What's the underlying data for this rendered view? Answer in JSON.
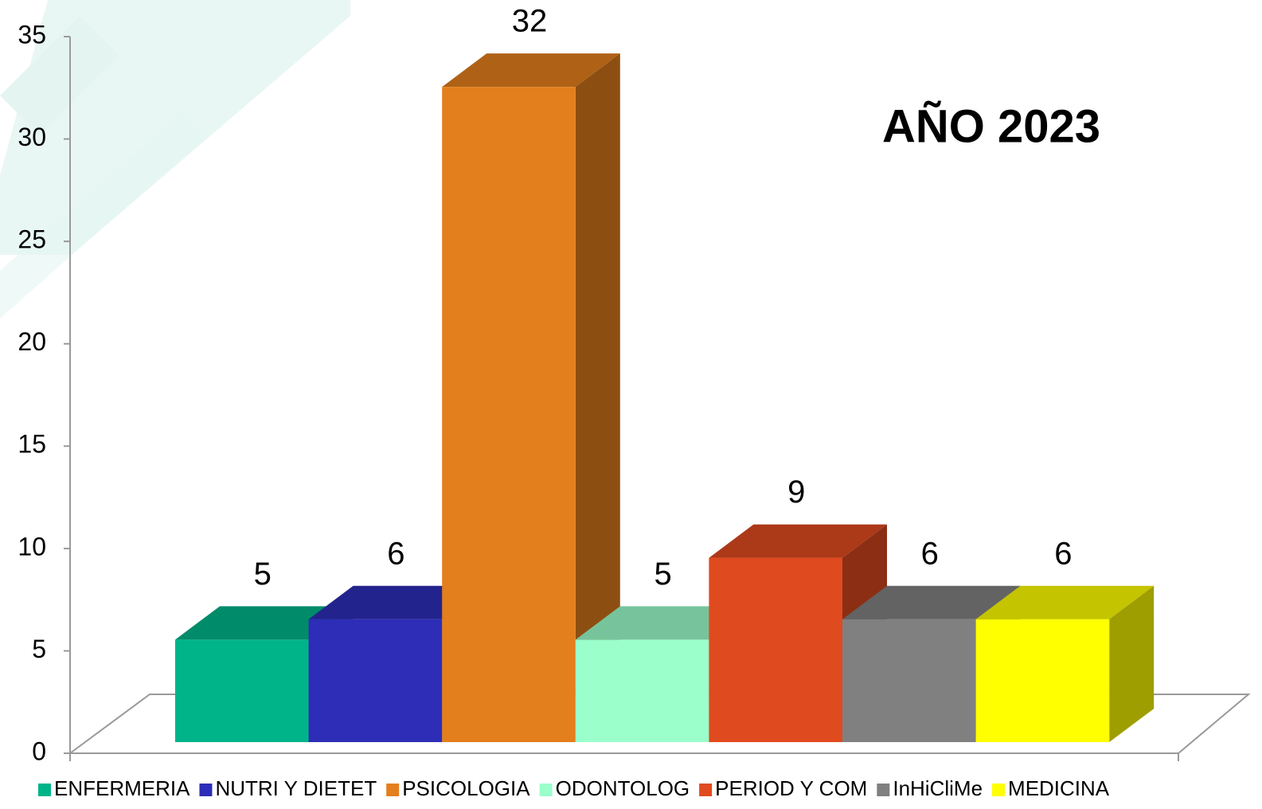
{
  "chart_data": {
    "type": "bar3d",
    "title": "AÑO 2023",
    "series": [
      {
        "name": "ENFERMERIA",
        "color": "#00b48a",
        "values": [
          5
        ]
      },
      {
        "name": "NUTRI Y DIETET",
        "color": "#2e2db7",
        "values": [
          6
        ]
      },
      {
        "name": "PSICOLOGIA",
        "color": "#e37f1c",
        "values": [
          32
        ]
      },
      {
        "name": "ODONTOLOG",
        "color": "#9affcb",
        "values": [
          5
        ]
      },
      {
        "name": "PERIOD Y COM",
        "color": "#e04a1f",
        "values": [
          9
        ]
      },
      {
        "name": "InHiCliMe",
        "color": "#808080",
        "values": [
          6
        ]
      },
      {
        "name": "MEDICINA",
        "color": "#ffff00",
        "values": [
          6
        ]
      }
    ],
    "ylim": [
      0,
      35
    ],
    "yticks": [
      0,
      5,
      10,
      15,
      20,
      25,
      30,
      35
    ],
    "grid": false,
    "legend": "bottom"
  }
}
